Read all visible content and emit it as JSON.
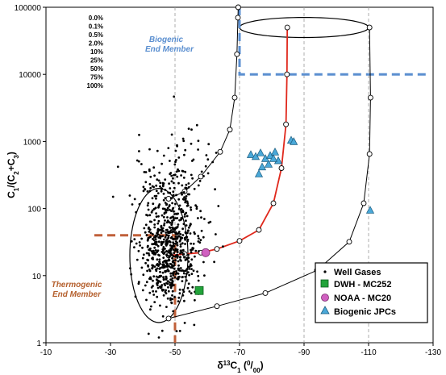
{
  "chart_data": {
    "type": "scatter",
    "title": "",
    "xlabel": "δ13C1 (0/00)",
    "ylabel": "C1/(C2+C3)",
    "x_ticks": [
      "-10",
      "-30",
      "-50",
      "-70",
      "-90",
      "-110",
      "-130"
    ],
    "y_ticks": [
      "1",
      "10",
      "100",
      "1000",
      "10000",
      "100000"
    ],
    "xlim": [
      -10,
      -130
    ],
    "ylim": [
      1,
      100000
    ],
    "y_scale": "log",
    "grid": "dashed at x=-50, x=-70, x=-90, x=-110",
    "mixing_percent_labels": [
      "0.0%",
      "0.1%",
      "0.5%",
      "2.0%",
      "10%",
      "25%",
      "50%",
      "75%",
      "100%"
    ],
    "annotations": [
      {
        "text_line1": "Biogenic",
        "text_line2": "End Member",
        "color": "#5b8fd0"
      },
      {
        "text_line1": "Thermogenic",
        "text_line2": "End Member",
        "color": "#b5602e"
      }
    ],
    "legend": {
      "placement": "bottom-right",
      "entries": [
        {
          "label": "Well Gases",
          "marker": "dot",
          "color": "#000000"
        },
        {
          "label": "DWH - MC252",
          "marker": "square",
          "color": "#22a33a"
        },
        {
          "label": "NOAA - MC20",
          "marker": "circle",
          "color": "#d060c0"
        },
        {
          "label": "Biogenic JPCs",
          "marker": "triangle",
          "color": "#4aa8d8"
        }
      ]
    },
    "series": [
      {
        "name": "Well Gases",
        "marker": "dot",
        "color": "#000000",
        "cloud_center": [
          -48,
          25
        ],
        "cloud_spread": "x -37 to -67, y 2.5 to 2000"
      },
      {
        "name": "DWH - MC252",
        "marker": "square",
        "color": "#22a33a",
        "points": [
          [
            -57.5,
            6
          ]
        ]
      },
      {
        "name": "NOAA - MC20",
        "marker": "circle",
        "color": "#d060c0",
        "points": [
          [
            -59.5,
            22
          ]
        ]
      },
      {
        "name": "Biogenic JPCs",
        "marker": "triangle",
        "color": "#4aa8d8",
        "points": [
          [
            -73.5,
            640
          ],
          [
            -75,
            600
          ],
          [
            -76.5,
            680
          ],
          [
            -78,
            560
          ],
          [
            -79.5,
            620
          ],
          [
            -81,
            700
          ],
          [
            -82,
            520
          ],
          [
            -77,
            420
          ],
          [
            -79,
            460
          ],
          [
            -76,
            330
          ],
          [
            -80.5,
            560
          ],
          [
            -86,
            1050
          ],
          [
            -86.8,
            1000
          ],
          [
            -110.5,
            95
          ]
        ]
      }
    ],
    "mixing_curves": [
      {
        "color": "#e0281c",
        "points": [
          [
            -48,
            20
          ],
          [
            -53,
            21
          ],
          [
            -58,
            22
          ],
          [
            -63,
            25
          ],
          [
            -70,
            33
          ],
          [
            -76,
            48
          ],
          [
            -80.5,
            120
          ],
          [
            -83,
            400
          ],
          [
            -84.4,
            1800
          ],
          [
            -84.7,
            10000
          ],
          [
            -84.8,
            50000
          ]
        ]
      },
      {
        "color": "#000000",
        "points": [
          [
            -48,
            140
          ],
          [
            -53,
            180
          ],
          [
            -58,
            300
          ],
          [
            -64,
            700
          ],
          [
            -67,
            1500
          ],
          [
            -68.5,
            4500
          ],
          [
            -69.2,
            20000
          ],
          [
            -69.5,
            70000
          ],
          [
            -69.6,
            100000
          ]
        ]
      },
      {
        "color": "#000000",
        "points": [
          [
            -48,
            2.3
          ],
          [
            -63,
            3.5
          ],
          [
            -78,
            5.5
          ],
          [
            -94,
            12
          ],
          [
            -104,
            32
          ],
          [
            -108.5,
            120
          ],
          [
            -110.3,
            650
          ],
          [
            -110.6,
            4500
          ],
          [
            -110.3,
            50000
          ]
        ]
      }
    ],
    "end_member_ellipses": [
      {
        "name": "biogenic",
        "center": [
          -90,
          50000
        ],
        "x_halfwidth": 20,
        "y_log_halfheight": 0.15
      },
      {
        "name": "thermogenic",
        "center": [
          -45,
          20
        ],
        "x_halfwidth": 9,
        "y_log_halfheight": 1.0
      }
    ],
    "reference_lines": [
      {
        "color": "#5b8fd0",
        "style": "dashed",
        "points": [
          [
            -70,
            100000
          ],
          [
            -70,
            10000
          ],
          [
            -128,
            10000
          ]
        ]
      },
      {
        "color": "#c0603a",
        "style": "dashed",
        "points": [
          [
            -25,
            40
          ],
          [
            -50,
            40
          ],
          [
            -50,
            1
          ]
        ]
      }
    ]
  }
}
